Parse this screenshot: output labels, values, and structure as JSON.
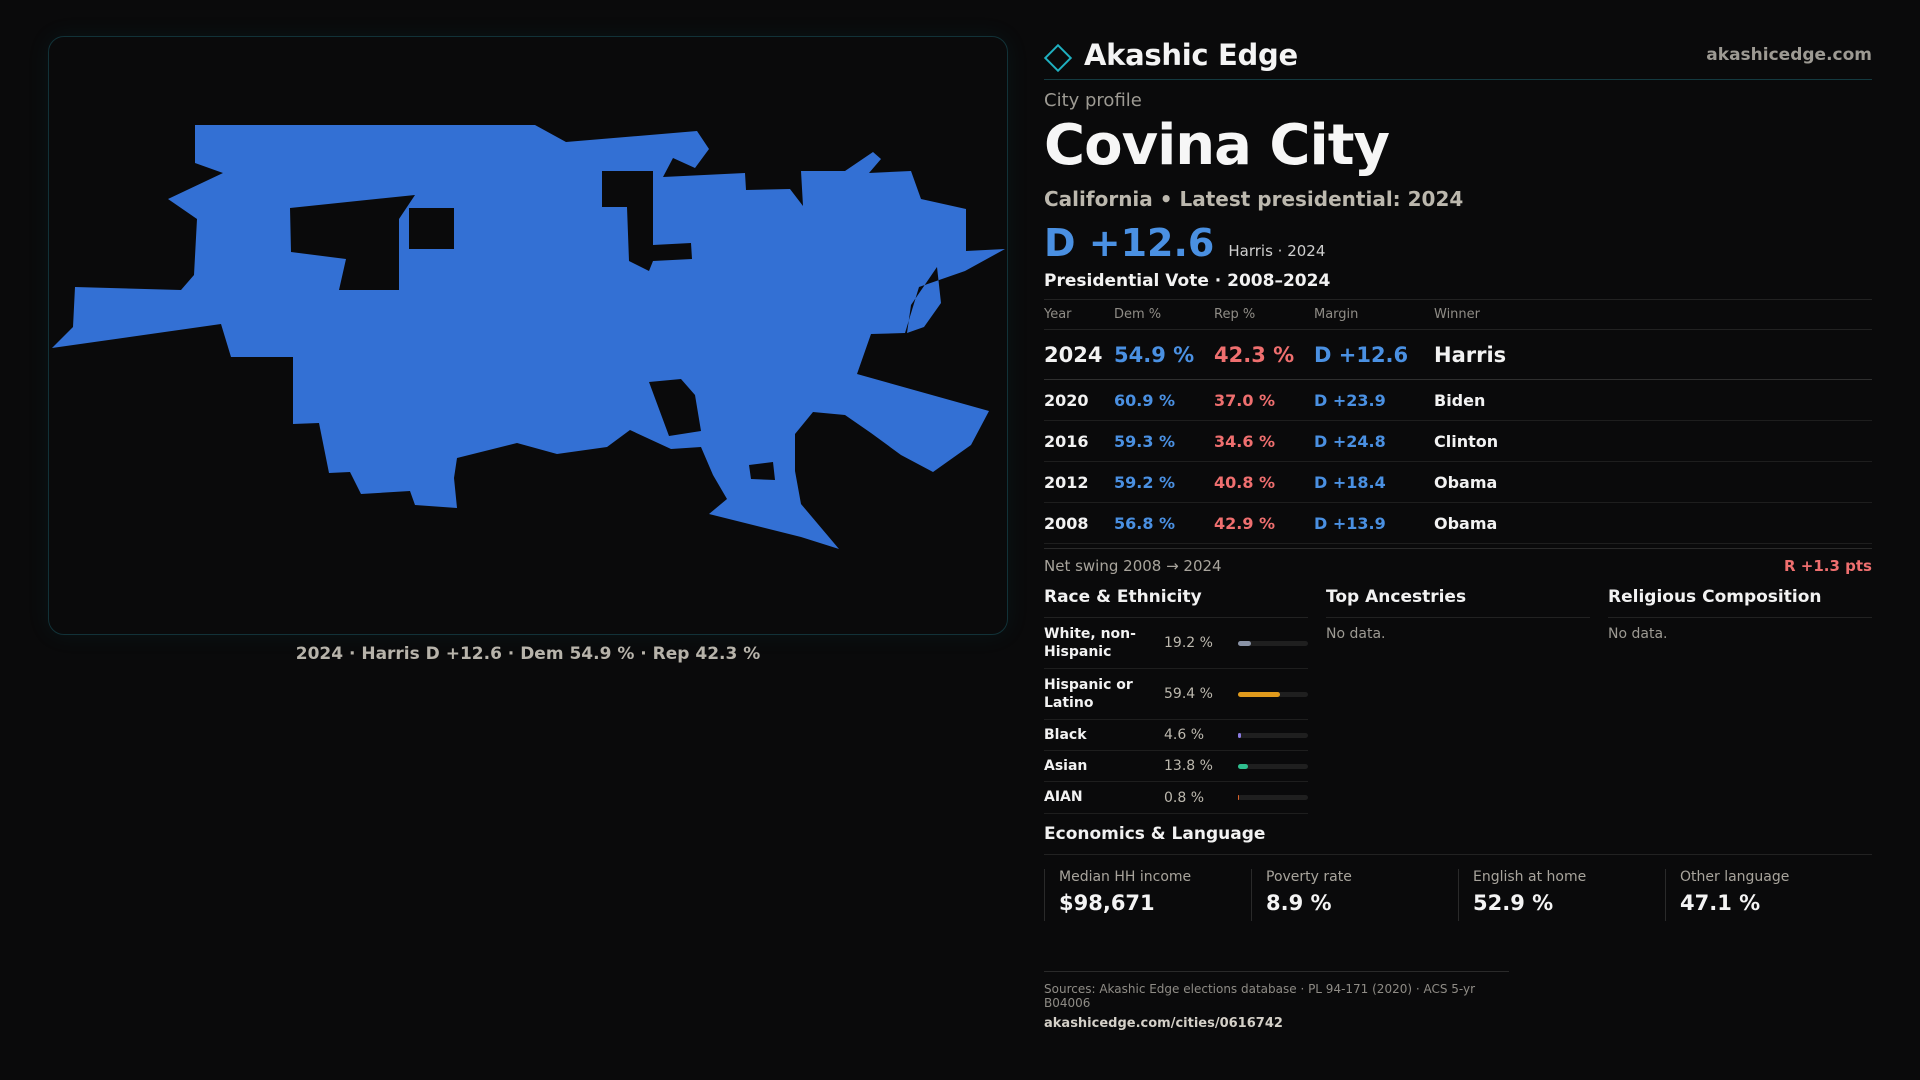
{
  "map": {
    "caption": "2024 · Harris D +12.6 · Dem 54.9 % · Rep 42.3 %",
    "fill_color": "#3370d4"
  },
  "brand": {
    "name": "Akashic Edge",
    "url": "akashicedge.com"
  },
  "profile": {
    "eyebrow": "City profile",
    "city": "Covina City",
    "subtitle": "California • Latest presidential: 2024",
    "headline_margin": "D +12.6",
    "headline_note": "Harris · 2024"
  },
  "presidential": {
    "title": "Presidential Vote · 2008–2024",
    "headers": [
      "Year",
      "Dem %",
      "Rep %",
      "Margin",
      "Winner"
    ],
    "rows": [
      {
        "year": "2024",
        "dem": "54.9 %",
        "rep": "42.3 %",
        "margin": "D +12.6",
        "winner": "Harris"
      },
      {
        "year": "2020",
        "dem": "60.9 %",
        "rep": "37.0 %",
        "margin": "D +23.9",
        "winner": "Biden"
      },
      {
        "year": "2016",
        "dem": "59.3 %",
        "rep": "34.6 %",
        "margin": "D +24.8",
        "winner": "Clinton"
      },
      {
        "year": "2012",
        "dem": "59.2 %",
        "rep": "40.8 %",
        "margin": "D +18.4",
        "winner": "Obama"
      },
      {
        "year": "2008",
        "dem": "56.8 %",
        "rep": "42.9 %",
        "margin": "D +13.9",
        "winner": "Obama"
      }
    ],
    "swing_label": "Net swing 2008 → 2024",
    "swing_value": "R +1.3 pts"
  },
  "race": {
    "title": "Race & Ethnicity",
    "rows": [
      {
        "name": "White, non-Hispanic",
        "pct": "19.2 %",
        "value": 19.2,
        "color": "#8a93a6"
      },
      {
        "name": "Hispanic or Latino",
        "pct": "59.4 %",
        "value": 59.4,
        "color": "#e09a1c"
      },
      {
        "name": "Black",
        "pct": "4.6 %",
        "value": 4.6,
        "color": "#8b7be0"
      },
      {
        "name": "Asian",
        "pct": "13.8 %",
        "value": 13.8,
        "color": "#2fbf8f"
      },
      {
        "name": "AIAN",
        "pct": "0.8 %",
        "value": 0.8,
        "color": "#d9622b"
      }
    ]
  },
  "ancestries": {
    "title": "Top Ancestries",
    "empty": "No data."
  },
  "religion": {
    "title": "Religious Composition",
    "empty": "No data."
  },
  "economics": {
    "title": "Economics & Language",
    "cells": [
      {
        "label": "Median HH income",
        "value": "$98,671"
      },
      {
        "label": "Poverty rate",
        "value": "8.9 %"
      },
      {
        "label": "English at home",
        "value": "52.9 %"
      },
      {
        "label": "Other language",
        "value": "47.1 %"
      }
    ]
  },
  "footer": {
    "sources": "Sources: Akashic Edge elections database · PL 94-171 (2020) · ACS 5-yr B04006",
    "url": "akashicedge.com/cities/0616742"
  }
}
